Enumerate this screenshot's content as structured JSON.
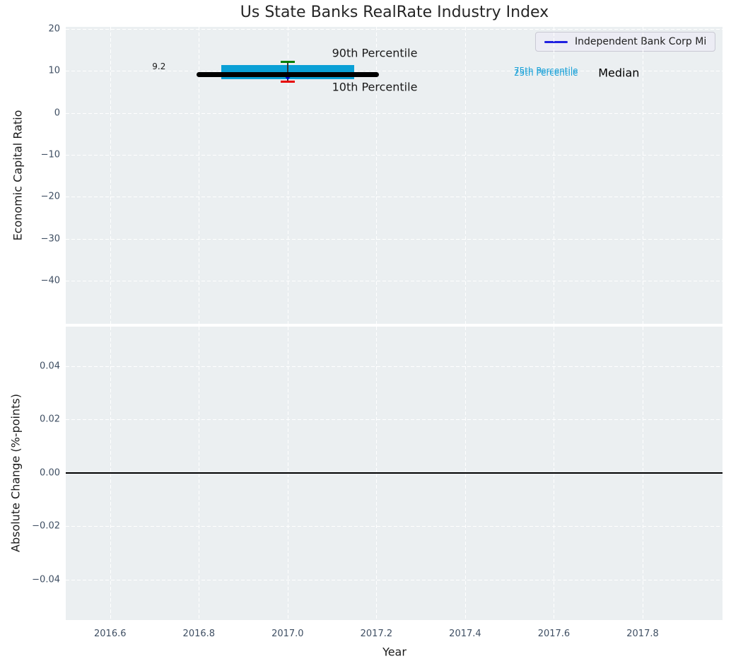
{
  "title": "Us State Banks RealRate Industry Index",
  "legend": {
    "label": "Independent Bank Corp Mi",
    "line_color": "#2020e0"
  },
  "colors": {
    "plot_background": "#ebeff1",
    "gridline": "#ffffff",
    "tick_label": "#3f4f63",
    "box_fill": "#0aa0d6",
    "percentile90_cap": "#007f00",
    "percentile10_cap": "#e60000",
    "whisker_line": "#333333",
    "median_line": "#000000",
    "company_marker": "#0000cc",
    "annotation_cyan": "#1da2d8",
    "zero_line": "#000000"
  },
  "chart_data": [
    {
      "type": "box-whisker-timeline",
      "panel": "top",
      "title": "Us State Banks RealRate Industry Index",
      "ylabel": "Economic Capital Ratio",
      "xlim": [
        2016.5,
        2017.98
      ],
      "ylim": [
        -50.3,
        20.5
      ],
      "grid": true,
      "yticks": [
        {
          "v": 20,
          "label": "20"
        },
        {
          "v": 10,
          "label": "10"
        },
        {
          "v": 0,
          "label": "0"
        },
        {
          "v": -10,
          "label": "−10"
        },
        {
          "v": -20,
          "label": "−20"
        },
        {
          "v": -30,
          "label": "−30"
        },
        {
          "v": -40,
          "label": "−40"
        }
      ],
      "xticks": [
        {
          "v": 2016.6,
          "label": "2016.6"
        },
        {
          "v": 2016.8,
          "label": "2016.8"
        },
        {
          "v": 2017.0,
          "label": "2017.0"
        },
        {
          "v": 2017.2,
          "label": "2017.2"
        },
        {
          "v": 2017.4,
          "label": "2017.4"
        },
        {
          "v": 2017.6,
          "label": "2017.6"
        },
        {
          "v": 2017.8,
          "label": "2017.8"
        }
      ],
      "show_xtick_labels": false,
      "industry": {
        "year": 2017.0,
        "median": 9.2,
        "median_span": [
          2016.8,
          2017.2
        ],
        "box_span": [
          2016.85,
          2017.15
        ],
        "p25": 8.1,
        "p75": 11.4,
        "p10": 7.5,
        "p90": 12.2,
        "cap_half_width_years": 0.016
      },
      "company_marker": {
        "year": 2017.0,
        "value": 8.6,
        "shape": "triangle-down"
      },
      "annotations": [
        {
          "text": "9.2",
          "x": 2016.71,
          "y": 11.1,
          "color": "#1a1a1a",
          "size": 12,
          "ha": "center"
        },
        {
          "text": "90th Percentile",
          "x": 2017.1,
          "y": 14.2,
          "color": "#1a1a1a",
          "size": 16,
          "ha": "left"
        },
        {
          "text": "10th Percentile",
          "x": 2017.1,
          "y": 6.2,
          "color": "#1a1a1a",
          "size": 16,
          "ha": "left"
        },
        {
          "text": "75th Percentile",
          "x": 2017.51,
          "y": 10.0,
          "color": "#1da2d8",
          "size": 12,
          "ha": "left"
        },
        {
          "text": "25th Percentile",
          "x": 2017.51,
          "y": 9.6,
          "color": "#1da2d8",
          "size": 12,
          "ha": "left"
        },
        {
          "text": "Median",
          "x": 2017.7,
          "y": 9.5,
          "color": "#000000",
          "size": 16,
          "ha": "left"
        }
      ]
    },
    {
      "type": "line",
      "panel": "bottom",
      "ylabel": "Absolute Change (%-points)",
      "xlabel": "Year",
      "xlim": [
        2016.5,
        2017.98
      ],
      "ylim": [
        -0.0551,
        0.0548
      ],
      "grid": true,
      "yticks": [
        {
          "v": 0.04,
          "label": "0.04"
        },
        {
          "v": 0.02,
          "label": "0.02"
        },
        {
          "v": 0,
          "label": "0.00"
        },
        {
          "v": -0.02,
          "label": "−0.02"
        },
        {
          "v": -0.04,
          "label": "−0.04"
        }
      ],
      "xticks": [
        {
          "v": 2016.6,
          "label": "2016.6"
        },
        {
          "v": 2016.8,
          "label": "2016.8"
        },
        {
          "v": 2017.0,
          "label": "2017.0"
        },
        {
          "v": 2017.2,
          "label": "2017.2"
        },
        {
          "v": 2017.4,
          "label": "2017.4"
        },
        {
          "v": 2017.6,
          "label": "2017.6"
        },
        {
          "v": 2017.8,
          "label": "2017.8"
        }
      ],
      "show_xtick_labels": true,
      "zero_line": {
        "y": 0.0
      }
    }
  ]
}
